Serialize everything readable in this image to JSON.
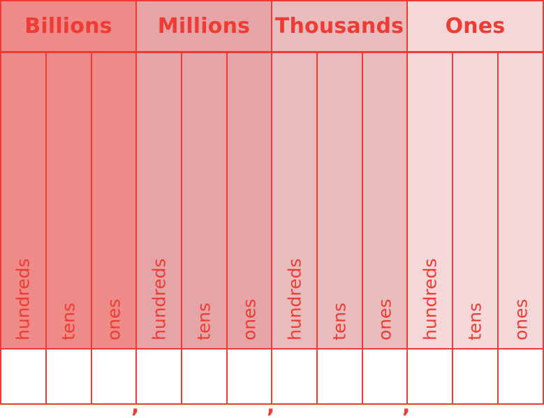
{
  "colors": {
    "line": "#ee3b34",
    "text": "#ee3b34",
    "billions_fill": "#ee8a87",
    "millions_fill": "#e5a5a6",
    "thousands_fill": "#e8bcbd",
    "ones_fill": "#f3d7d9"
  },
  "groups": [
    {
      "title": "Billions",
      "columns": [
        "hundreds",
        "tens",
        "ones"
      ]
    },
    {
      "title": "Millions",
      "columns": [
        "hundreds",
        "tens",
        "ones"
      ]
    },
    {
      "title": "Thousands",
      "columns": [
        "hundreds",
        "tens",
        "ones"
      ]
    },
    {
      "title": "Ones",
      "columns": [
        "hundreds",
        "tens",
        "ones"
      ]
    }
  ],
  "separator": ","
}
